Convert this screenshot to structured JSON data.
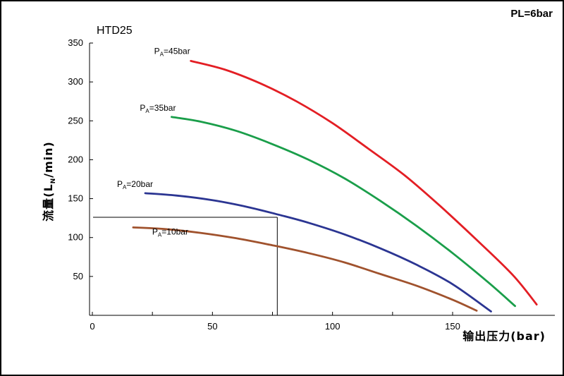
{
  "chart_data": {
    "type": "line",
    "title": "HTD25",
    "corner_label": "PL=6bar",
    "xlabel": "输出压力(bar)",
    "ylabel": {
      "prefix": "流量(L",
      "sub": "N",
      "suffix": "/min)"
    },
    "xlim": [
      0,
      185
    ],
    "ylim": [
      0,
      350
    ],
    "xticks": [
      0,
      50,
      100,
      150
    ],
    "yticks": [
      50,
      100,
      150,
      200,
      250,
      300,
      350
    ],
    "grid": false,
    "series": [
      {
        "name": {
          "main": "P",
          "sub": "A",
          "rest": "=45bar"
        },
        "color": "#e31e24",
        "x": [
          41,
          55,
          70,
          85,
          100,
          115,
          130,
          145,
          160,
          175,
          185
        ],
        "y": [
          327,
          316,
          298,
          275,
          247,
          214,
          180,
          140,
          97,
          52,
          14
        ]
      },
      {
        "name": {
          "main": "P",
          "sub": "A",
          "rest": "=35bar"
        },
        "color": "#1a9e4a",
        "x": [
          33,
          45,
          60,
          75,
          90,
          105,
          120,
          135,
          150,
          165,
          176
        ],
        "y": [
          255,
          249,
          237,
          220,
          200,
          176,
          147,
          115,
          80,
          42,
          12
        ]
      },
      {
        "name": {
          "main": "P",
          "sub": "A",
          "rest": "=20bar"
        },
        "color": "#2b3592",
        "x": [
          22,
          35,
          50,
          65,
          78,
          90,
          105,
          120,
          135,
          150,
          166
        ],
        "y": [
          157,
          154,
          148,
          139,
          129,
          119,
          104,
          86,
          65,
          40,
          5
        ]
      },
      {
        "name": {
          "main": "P",
          "sub": "A",
          "rest": "=10bar"
        },
        "color": "#a0522d",
        "x": [
          17,
          30,
          45,
          60,
          75,
          90,
          105,
          120,
          135,
          150,
          160
        ],
        "y": [
          113,
          111,
          106,
          99,
          90,
          80,
          68,
          53,
          38,
          20,
          6
        ]
      }
    ],
    "reference_point": {
      "x": 77,
      "y": 126
    }
  }
}
